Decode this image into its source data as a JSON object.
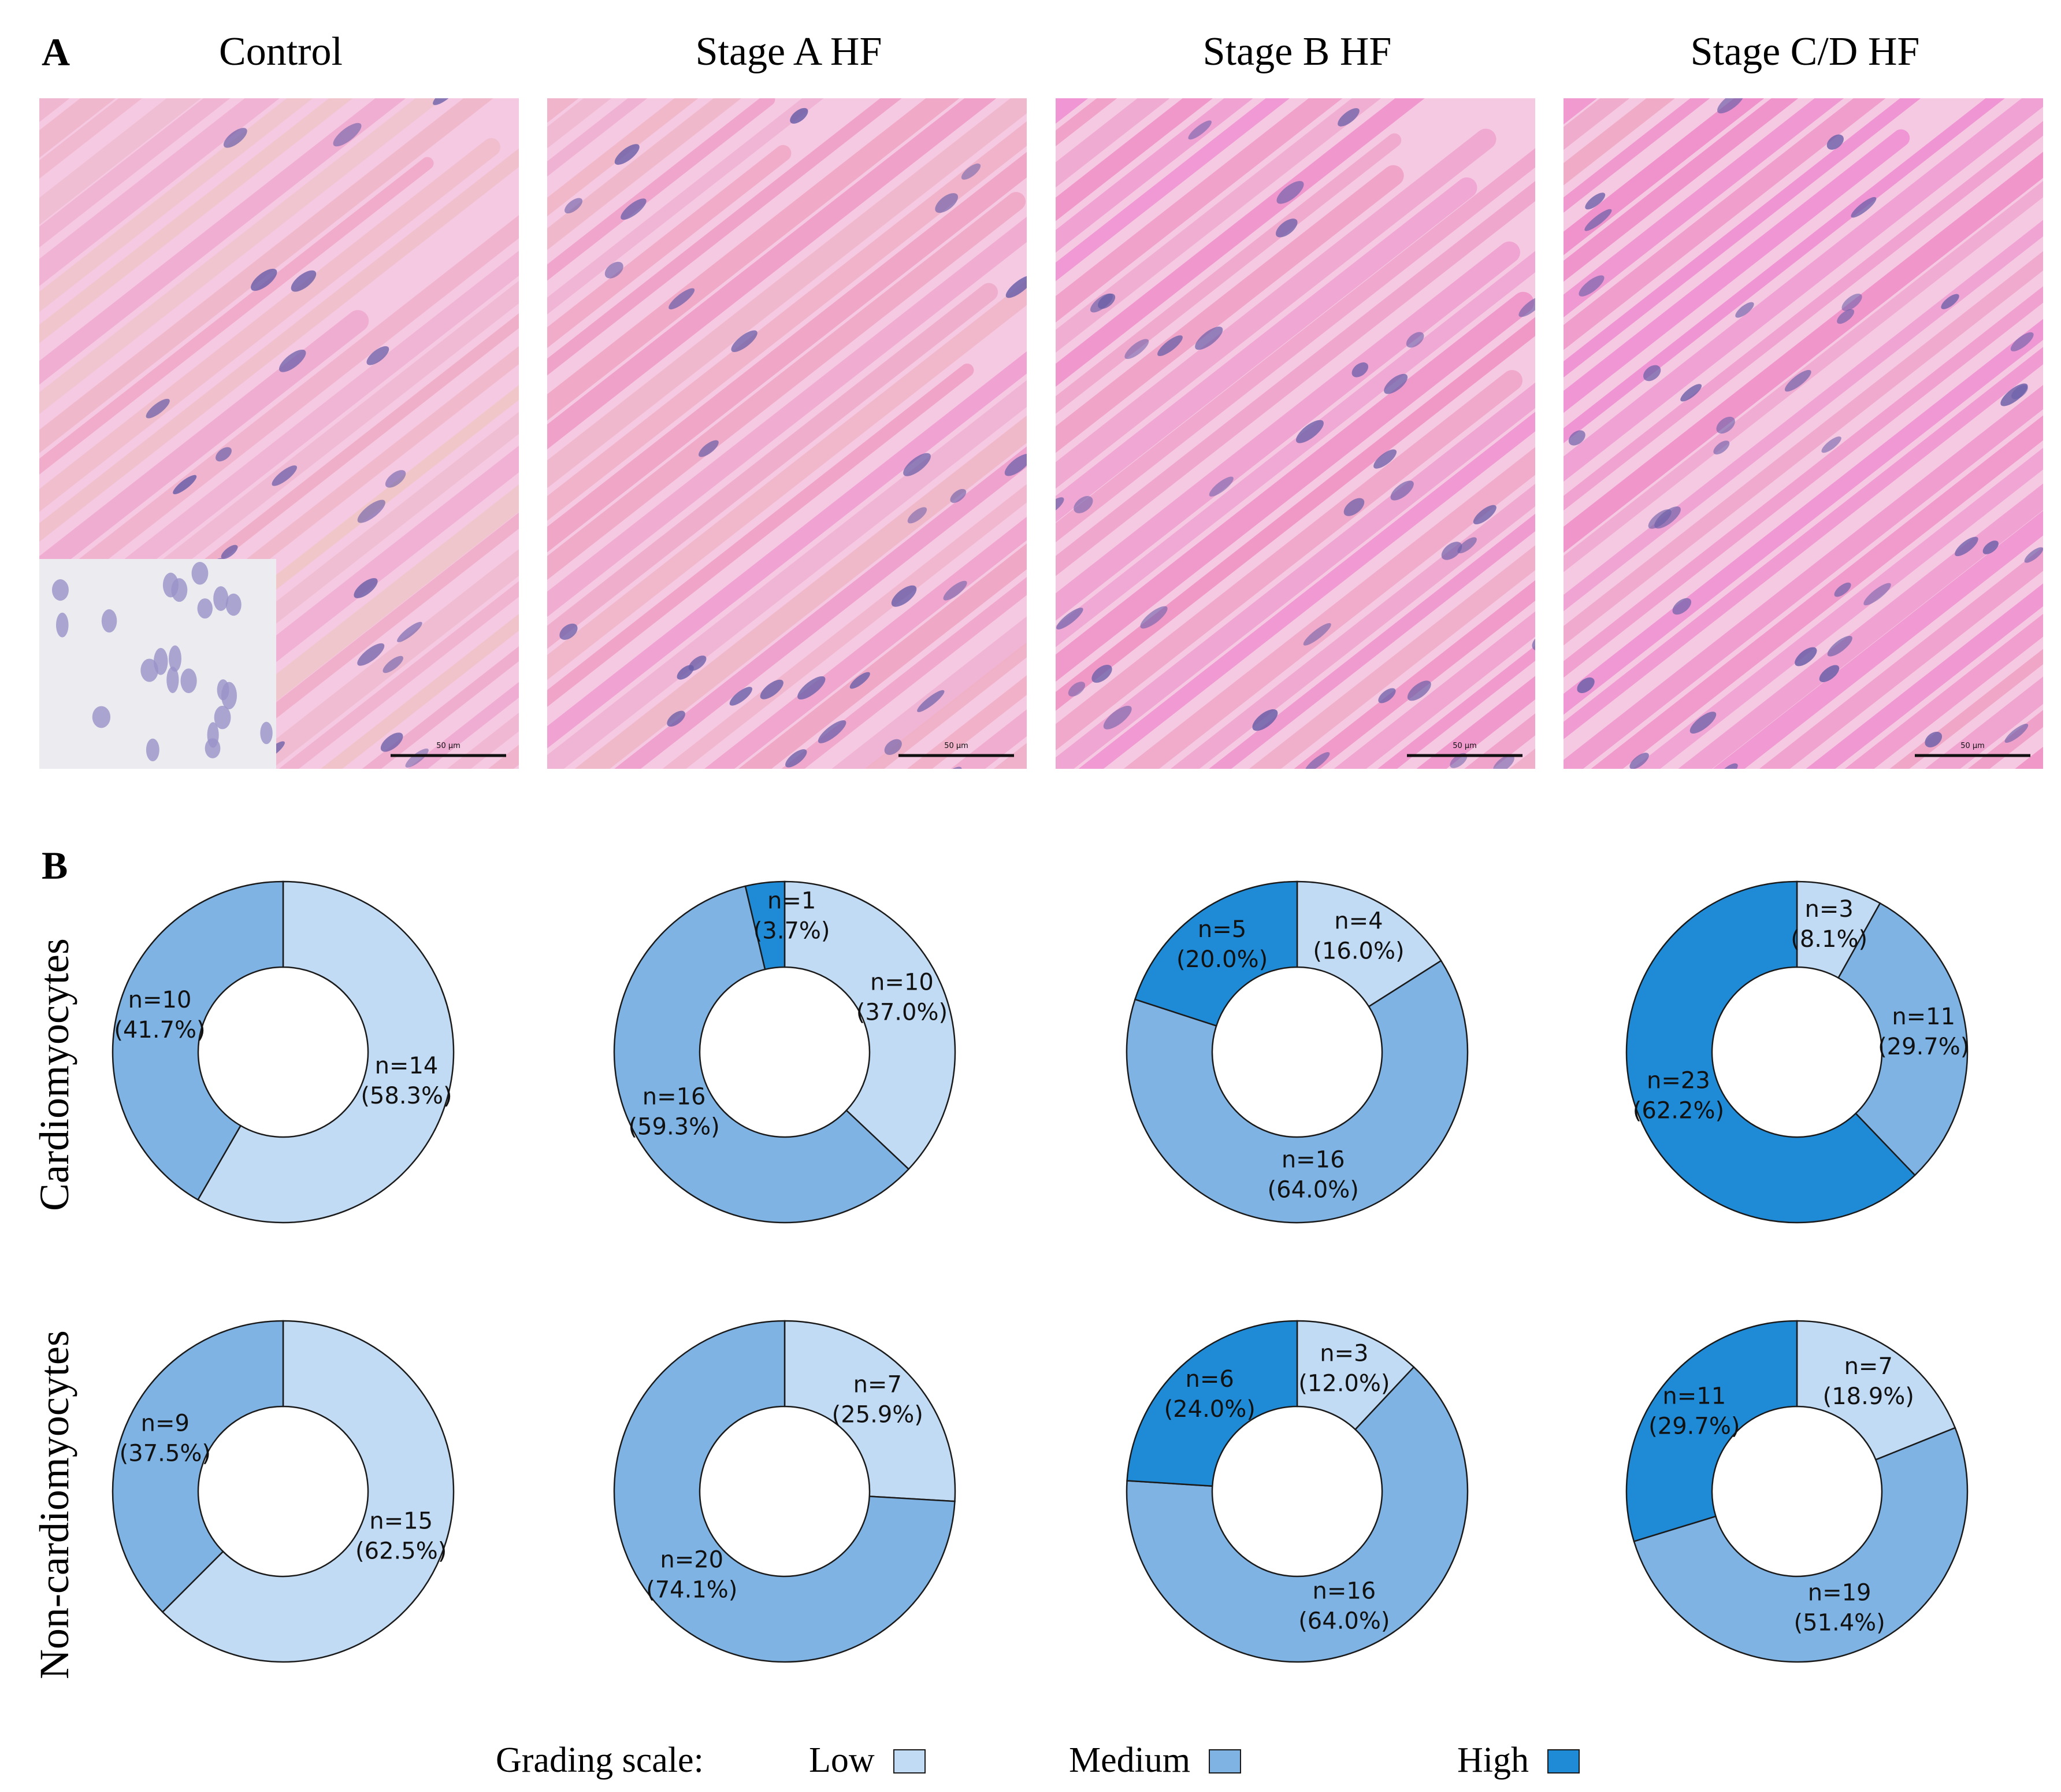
{
  "panels": {
    "a_label": "A",
    "b_label": "B"
  },
  "columns": [
    "Control",
    "Stage A HF",
    "Stage B HF",
    "Stage C/D HF"
  ],
  "micrographs": [
    {
      "name": "Control",
      "scale_label": "50 µm",
      "has_inset": true
    },
    {
      "name": "Stage A HF",
      "scale_label": "50 µm",
      "has_inset": false
    },
    {
      "name": "Stage B HF",
      "scale_label": "50 µm",
      "has_inset": false
    },
    {
      "name": "Stage C/D HF",
      "scale_label": "50 µm",
      "has_inset": false
    }
  ],
  "rows": [
    "Cardiomyocytes",
    "Non-cardiomyocytes"
  ],
  "legend": {
    "title": "Grading scale:",
    "items": [
      {
        "label": "Low",
        "color": "#c2dbf4"
      },
      {
        "label": "Medium",
        "color": "#7eb3e4"
      },
      {
        "label": "High",
        "color": "#1f8ad6"
      }
    ]
  },
  "colors": {
    "low": "#c2dbf4",
    "medium": "#7eb3e4",
    "high": "#1f8ad6",
    "stain": "#f07cc4",
    "nuclei": "#6a5fa8"
  },
  "chart_data": [
    {
      "type": "pie",
      "row": "Cardiomyocytes",
      "group": "Control",
      "categories": [
        "Low",
        "Medium",
        "High"
      ],
      "values": [
        14,
        10,
        0
      ],
      "labels": [
        [
          "n=14",
          "(58.3%)"
        ],
        [
          "n=10",
          "(41.7%)"
        ],
        null
      ]
    },
    {
      "type": "pie",
      "row": "Cardiomyocytes",
      "group": "Stage A HF",
      "categories": [
        "Low",
        "Medium",
        "High"
      ],
      "values": [
        10,
        16,
        1
      ],
      "labels": [
        [
          "n=10",
          "(37.0%)"
        ],
        [
          "n=16",
          "(59.3%)"
        ],
        [
          "n=1",
          "(3.7%)"
        ]
      ]
    },
    {
      "type": "pie",
      "row": "Cardiomyocytes",
      "group": "Stage B HF",
      "categories": [
        "Low",
        "Medium",
        "High"
      ],
      "values": [
        4,
        16,
        5
      ],
      "labels": [
        [
          "n=4",
          "(16.0%)"
        ],
        [
          "n=16",
          "(64.0%)"
        ],
        [
          "n=5",
          "(20.0%)"
        ]
      ]
    },
    {
      "type": "pie",
      "row": "Cardiomyocytes",
      "group": "Stage C/D HF",
      "categories": [
        "Low",
        "Medium",
        "High"
      ],
      "values": [
        3,
        11,
        23
      ],
      "labels": [
        [
          "n=3",
          "(8.1%)"
        ],
        [
          "n=11",
          "(29.7%)"
        ],
        [
          "n=23",
          "(62.2%)"
        ]
      ]
    },
    {
      "type": "pie",
      "row": "Non-cardiomyocytes",
      "group": "Control",
      "categories": [
        "Low",
        "Medium",
        "High"
      ],
      "values": [
        15,
        9,
        0
      ],
      "labels": [
        [
          "n=15",
          "(62.5%)"
        ],
        [
          "n=9",
          "(37.5%)"
        ],
        null
      ]
    },
    {
      "type": "pie",
      "row": "Non-cardiomyocytes",
      "group": "Stage A HF",
      "categories": [
        "Low",
        "Medium",
        "High"
      ],
      "values": [
        7,
        20,
        0
      ],
      "labels": [
        [
          "n=7",
          "(25.9%)"
        ],
        [
          "n=20",
          "(74.1%)"
        ],
        null
      ]
    },
    {
      "type": "pie",
      "row": "Non-cardiomyocytes",
      "group": "Stage B HF",
      "categories": [
        "Low",
        "Medium",
        "High"
      ],
      "values": [
        3,
        16,
        6
      ],
      "labels": [
        [
          "n=3",
          "(12.0%)"
        ],
        [
          "n=16",
          "(64.0%)"
        ],
        [
          "n=6",
          "(24.0%)"
        ]
      ]
    },
    {
      "type": "pie",
      "row": "Non-cardiomyocytes",
      "group": "Stage C/D HF",
      "categories": [
        "Low",
        "Medium",
        "High"
      ],
      "values": [
        7,
        19,
        11
      ],
      "labels": [
        [
          "n=7",
          "(18.9%)"
        ],
        [
          "n=19",
          "(51.4%)"
        ],
        [
          "n=11",
          "(29.7%)"
        ]
      ]
    }
  ]
}
